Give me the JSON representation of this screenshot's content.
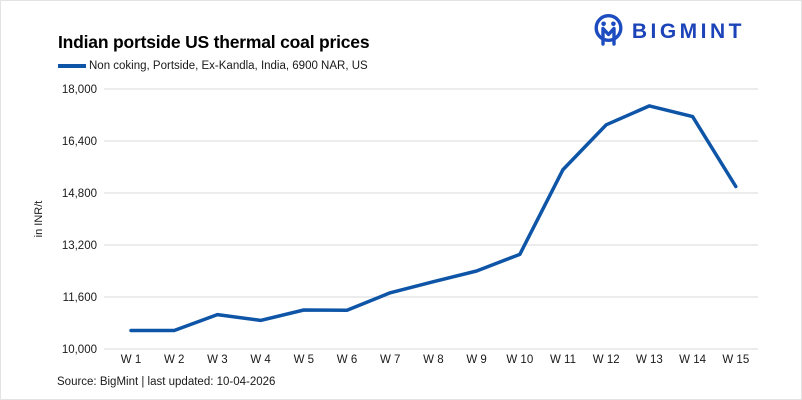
{
  "logo": {
    "text": "BIGMINT",
    "color": "#1c44b8"
  },
  "chart_data": {
    "type": "line",
    "title": "Indian portside US thermal coal prices",
    "categories": [
      "W 1",
      "W 2",
      "W 3",
      "W 4",
      "W 5",
      "W 6",
      "W 7",
      "W 8",
      "W 9",
      "W 10",
      "W 11",
      "W 12",
      "W 13",
      "W 14",
      "W 15"
    ],
    "series": [
      {
        "name": "Non coking, Portside, Ex-Kandla, India, 6900 NAR, US",
        "color": "#0e55a7",
        "values": [
          10570,
          10570,
          11060,
          10880,
          11200,
          11190,
          11730,
          12070,
          12400,
          12910,
          15520,
          16900,
          17480,
          17150,
          15000
        ]
      }
    ],
    "xlabel": "",
    "ylabel": "in INR/t",
    "ylim": [
      10000,
      18000
    ],
    "yticks": [
      10000,
      11600,
      13200,
      14800,
      16400,
      18000
    ],
    "grid": true,
    "legend_position": "top-left"
  },
  "footer": {
    "source_note": "Source: BigMint | last updated: 10-04-2026"
  }
}
